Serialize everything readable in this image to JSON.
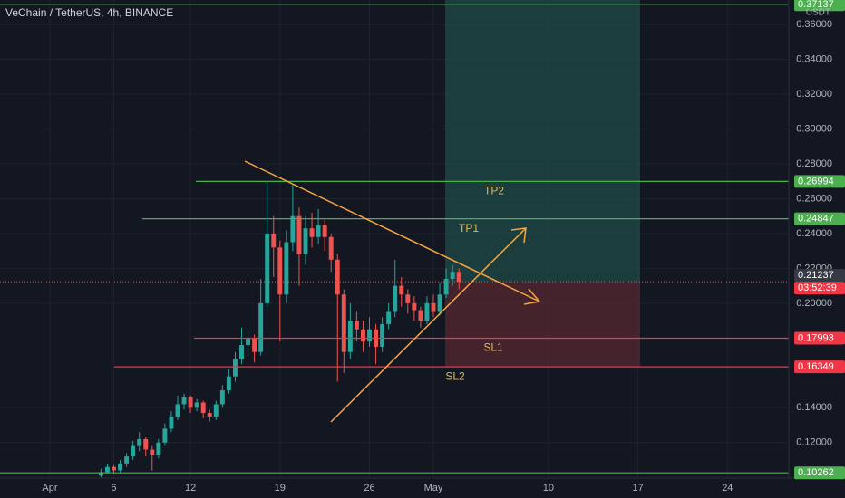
{
  "chart_data": {
    "type": "candlestick",
    "title": "VeChain / TetherUS, 4h, BINANCE",
    "currency": "USDT",
    "xlim": [
      -3.9,
      57.8
    ],
    "ylim": [
      0.0996,
      0.3741
    ],
    "xticks": [
      {
        "value": 0,
        "label": "Apr"
      },
      {
        "value": 5,
        "label": "6"
      },
      {
        "value": 11,
        "label": "12"
      },
      {
        "value": 18,
        "label": "19"
      },
      {
        "value": 25,
        "label": "26"
      },
      {
        "value": 30,
        "label": "May"
      },
      {
        "value": 39,
        "label": "10"
      },
      {
        "value": 46,
        "label": "17"
      },
      {
        "value": 53,
        "label": "24"
      }
    ],
    "yticks": [
      {
        "value": 0.36,
        "label": "0.36000"
      },
      {
        "value": 0.34,
        "label": "0.34000"
      },
      {
        "value": 0.32,
        "label": "0.32000"
      },
      {
        "value": 0.3,
        "label": "0.30000"
      },
      {
        "value": 0.28,
        "label": "0.28000"
      },
      {
        "value": 0.26,
        "label": "0.26000"
      },
      {
        "value": 0.24,
        "label": "0.24000"
      },
      {
        "value": 0.22,
        "label": "0.22000"
      },
      {
        "value": 0.2,
        "label": "0.20000"
      },
      {
        "value": 0.14,
        "label": "0.14000"
      },
      {
        "value": 0.12,
        "label": "0.12000"
      }
    ],
    "x": [
      4,
      4.5,
      5,
      5.5,
      6,
      6.5,
      7,
      7.5,
      8,
      8.5,
      9,
      9.5,
      10,
      10.5,
      11,
      11.5,
      12,
      12.5,
      13,
      13.5,
      14,
      14.5,
      15,
      15.5,
      16,
      16.5,
      17,
      17.5,
      18,
      18.5,
      19,
      19.5,
      20,
      20.5,
      21,
      21.5,
      22,
      22.5,
      23,
      23.5,
      24,
      24.5,
      25,
      25.5,
      26,
      26.5,
      27,
      27.5,
      28,
      28.5,
      29,
      29.5,
      30,
      30.5,
      31,
      31.5,
      32
    ],
    "open": [
      0.101,
      0.103,
      0.106,
      0.104,
      0.108,
      0.112,
      0.118,
      0.122,
      0.116,
      0.113,
      0.12,
      0.128,
      0.135,
      0.142,
      0.146,
      0.14,
      0.143,
      0.137,
      0.135,
      0.142,
      0.15,
      0.158,
      0.168,
      0.176,
      0.18,
      0.172,
      0.2,
      0.24,
      0.232,
      0.205,
      0.235,
      0.25,
      0.228,
      0.243,
      0.238,
      0.245,
      0.238,
      0.225,
      0.205,
      0.172,
      0.19,
      0.185,
      0.178,
      0.185,
      0.175,
      0.188,
      0.195,
      0.21,
      0.205,
      0.2,
      0.196,
      0.19,
      0.2,
      0.195,
      0.205,
      0.214,
      0.218
    ],
    "high": [
      0.105,
      0.108,
      0.107,
      0.11,
      0.114,
      0.121,
      0.126,
      0.123,
      0.118,
      0.122,
      0.131,
      0.138,
      0.147,
      0.148,
      0.147,
      0.145,
      0.144,
      0.139,
      0.144,
      0.153,
      0.162,
      0.172,
      0.186,
      0.184,
      0.182,
      0.214,
      0.27,
      0.25,
      0.236,
      0.242,
      0.268,
      0.255,
      0.25,
      0.252,
      0.254,
      0.248,
      0.24,
      0.228,
      0.208,
      0.2,
      0.195,
      0.19,
      0.192,
      0.188,
      0.192,
      0.2,
      0.225,
      0.215,
      0.208,
      0.204,
      0.198,
      0.204,
      0.205,
      0.212,
      0.22,
      0.222,
      0.22
    ],
    "low": [
      0.1,
      0.102,
      0.102,
      0.103,
      0.106,
      0.11,
      0.115,
      0.112,
      0.104,
      0.111,
      0.118,
      0.126,
      0.133,
      0.139,
      0.137,
      0.138,
      0.134,
      0.132,
      0.133,
      0.14,
      0.148,
      0.155,
      0.165,
      0.17,
      0.166,
      0.17,
      0.198,
      0.215,
      0.178,
      0.2,
      0.23,
      0.21,
      0.222,
      0.232,
      0.234,
      0.23,
      0.218,
      0.155,
      0.16,
      0.168,
      0.178,
      0.172,
      0.175,
      0.165,
      0.172,
      0.185,
      0.192,
      0.198,
      0.194,
      0.19,
      0.186,
      0.188,
      0.192,
      0.193,
      0.203,
      0.21,
      0.208
    ],
    "close": [
      0.103,
      0.106,
      0.104,
      0.108,
      0.112,
      0.118,
      0.122,
      0.116,
      0.113,
      0.12,
      0.128,
      0.135,
      0.142,
      0.146,
      0.14,
      0.143,
      0.137,
      0.135,
      0.142,
      0.15,
      0.158,
      0.168,
      0.176,
      0.18,
      0.172,
      0.2,
      0.24,
      0.232,
      0.205,
      0.235,
      0.25,
      0.228,
      0.243,
      0.238,
      0.245,
      0.238,
      0.225,
      0.205,
      0.172,
      0.19,
      0.185,
      0.178,
      0.185,
      0.175,
      0.188,
      0.195,
      0.21,
      0.205,
      0.2,
      0.196,
      0.19,
      0.2,
      0.195,
      0.205,
      0.214,
      0.218,
      0.21237
    ],
    "up_color": "#26a69a",
    "down_color": "#ef5350",
    "levels": [
      {
        "value": 0.37137,
        "color": "#4caf50"
      },
      {
        "name": "TP2",
        "value": 0.26994,
        "color": "#4caf50"
      },
      {
        "name": "TP1",
        "value": 0.24847,
        "color": "#4caf50"
      },
      {
        "name": "SL1",
        "value": 0.17993,
        "color": "#f23645"
      },
      {
        "name": "SL2",
        "value": 0.16349,
        "color": "#f23645"
      },
      {
        "value": 0.10262,
        "color": "#4caf50"
      }
    ],
    "current_price": 0.21237,
    "countdown": "03:52:39"
  }
}
